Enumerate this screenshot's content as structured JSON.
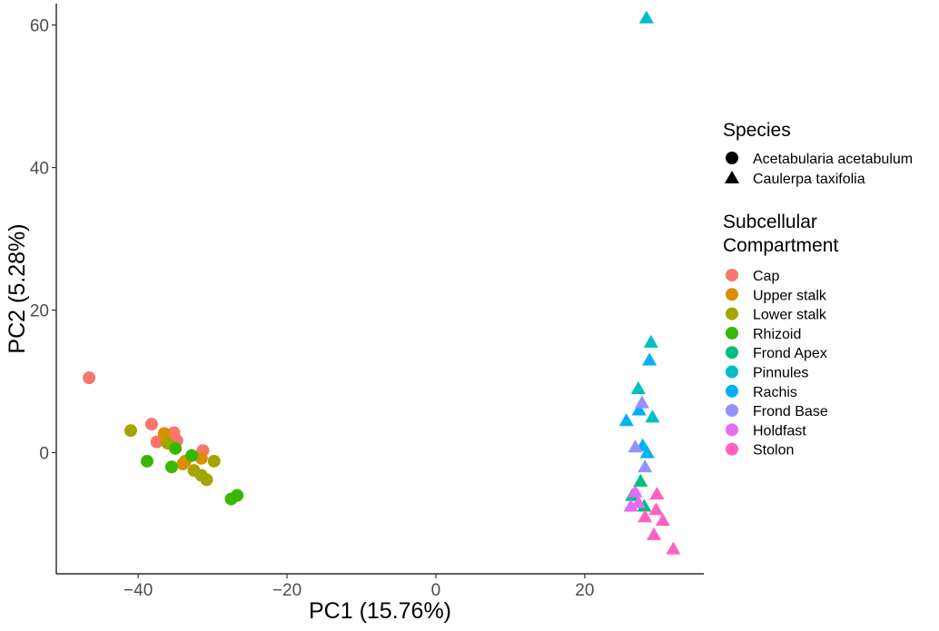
{
  "chart_data": {
    "type": "scatter",
    "xlabel": "PC1 (15.76%)",
    "ylabel": "PC2 (5.28%)",
    "xlim": [
      -51,
      36
    ],
    "ylim": [
      -17,
      63
    ],
    "xticks": [
      -40,
      -20,
      0,
      20
    ],
    "yticks": [
      0,
      20,
      40,
      60
    ],
    "xtick_labels": [
      "−40",
      "−20",
      "0",
      "20"
    ],
    "ytick_labels": [
      "0",
      "20",
      "40",
      "60"
    ],
    "grid": false,
    "legend_position": "right",
    "legend_species_title": "Species",
    "legend_compartment_title": [
      "Subcellular",
      "Compartment"
    ],
    "species": [
      {
        "name": "Acetabularia acetabulum",
        "shape": "circle"
      },
      {
        "name": "Caulerpa taxifolia",
        "shape": "triangle"
      }
    ],
    "compartments": [
      {
        "name": "Cap",
        "color": "#F8766D"
      },
      {
        "name": "Upper stalk",
        "color": "#D89000"
      },
      {
        "name": "Lower stalk",
        "color": "#A3A500"
      },
      {
        "name": "Rhizoid",
        "color": "#39B600"
      },
      {
        "name": "Frond Apex",
        "color": "#00BF7D"
      },
      {
        "name": "Pinnules",
        "color": "#00BFC4"
      },
      {
        "name": "Rachis",
        "color": "#00B0F6"
      },
      {
        "name": "Frond Base",
        "color": "#9590FF"
      },
      {
        "name": "Holdfast",
        "color": "#E76BF3"
      },
      {
        "name": "Stolon",
        "color": "#FF62BC"
      }
    ],
    "points": [
      {
        "x": -46.6,
        "y": 10.5,
        "species": "Acetabularia acetabulum",
        "compartment": "Cap"
      },
      {
        "x": -38.2,
        "y": 4.0,
        "species": "Acetabularia acetabulum",
        "compartment": "Cap"
      },
      {
        "x": -35.2,
        "y": 2.8,
        "species": "Acetabularia acetabulum",
        "compartment": "Cap"
      },
      {
        "x": -37.5,
        "y": 1.5,
        "species": "Acetabularia acetabulum",
        "compartment": "Cap"
      },
      {
        "x": -34.8,
        "y": 1.7,
        "species": "Acetabularia acetabulum",
        "compartment": "Cap"
      },
      {
        "x": -31.3,
        "y": 0.3,
        "species": "Acetabularia acetabulum",
        "compartment": "Cap"
      },
      {
        "x": -36.5,
        "y": 2.7,
        "species": "Acetabularia acetabulum",
        "compartment": "Upper stalk"
      },
      {
        "x": -36.2,
        "y": 1.5,
        "species": "Acetabularia acetabulum",
        "compartment": "Upper stalk"
      },
      {
        "x": -33.7,
        "y": -1.2,
        "species": "Acetabularia acetabulum",
        "compartment": "Upper stalk"
      },
      {
        "x": -31.5,
        "y": -0.8,
        "species": "Acetabularia acetabulum",
        "compartment": "Upper stalk"
      },
      {
        "x": -34.0,
        "y": -1.6,
        "species": "Acetabularia acetabulum",
        "compartment": "Upper stalk"
      },
      {
        "x": -41.0,
        "y": 3.1,
        "species": "Acetabularia acetabulum",
        "compartment": "Lower stalk"
      },
      {
        "x": -36.0,
        "y": 1.3,
        "species": "Acetabularia acetabulum",
        "compartment": "Lower stalk"
      },
      {
        "x": -32.5,
        "y": -2.5,
        "species": "Acetabularia acetabulum",
        "compartment": "Lower stalk"
      },
      {
        "x": -31.5,
        "y": -3.2,
        "species": "Acetabularia acetabulum",
        "compartment": "Lower stalk"
      },
      {
        "x": -30.8,
        "y": -3.8,
        "species": "Acetabularia acetabulum",
        "compartment": "Lower stalk"
      },
      {
        "x": -29.8,
        "y": -1.2,
        "species": "Acetabularia acetabulum",
        "compartment": "Lower stalk"
      },
      {
        "x": -38.8,
        "y": -1.2,
        "species": "Acetabularia acetabulum",
        "compartment": "Rhizoid"
      },
      {
        "x": -35.0,
        "y": 0.6,
        "species": "Acetabularia acetabulum",
        "compartment": "Rhizoid"
      },
      {
        "x": -35.5,
        "y": -2.0,
        "species": "Acetabularia acetabulum",
        "compartment": "Rhizoid"
      },
      {
        "x": -32.8,
        "y": -0.4,
        "species": "Acetabularia acetabulum",
        "compartment": "Rhizoid"
      },
      {
        "x": -27.5,
        "y": -6.5,
        "species": "Acetabularia acetabulum",
        "compartment": "Rhizoid"
      },
      {
        "x": -26.7,
        "y": -6.0,
        "species": "Acetabularia acetabulum",
        "compartment": "Rhizoid"
      },
      {
        "x": 28.3,
        "y": 61.0,
        "species": "Caulerpa taxifolia",
        "compartment": "Pinnules"
      },
      {
        "x": 28.9,
        "y": 15.5,
        "species": "Caulerpa taxifolia",
        "compartment": "Pinnules"
      },
      {
        "x": 27.2,
        "y": 9.0,
        "species": "Caulerpa taxifolia",
        "compartment": "Pinnules"
      },
      {
        "x": 29.1,
        "y": 5.0,
        "species": "Caulerpa taxifolia",
        "compartment": "Pinnules"
      },
      {
        "x": 28.7,
        "y": 13.0,
        "species": "Caulerpa taxifolia",
        "compartment": "Rachis"
      },
      {
        "x": 25.6,
        "y": 4.5,
        "species": "Caulerpa taxifolia",
        "compartment": "Rachis"
      },
      {
        "x": 27.3,
        "y": 6.0,
        "species": "Caulerpa taxifolia",
        "compartment": "Rachis"
      },
      {
        "x": 27.8,
        "y": 1.0,
        "species": "Caulerpa taxifolia",
        "compartment": "Rachis"
      },
      {
        "x": 28.4,
        "y": 0.0,
        "species": "Caulerpa taxifolia",
        "compartment": "Rachis"
      },
      {
        "x": 27.7,
        "y": 7.0,
        "species": "Caulerpa taxifolia",
        "compartment": "Frond Base"
      },
      {
        "x": 26.8,
        "y": 0.8,
        "species": "Caulerpa taxifolia",
        "compartment": "Frond Base"
      },
      {
        "x": 28.1,
        "y": -2.0,
        "species": "Caulerpa taxifolia",
        "compartment": "Frond Base"
      },
      {
        "x": 27.5,
        "y": -4.0,
        "species": "Caulerpa taxifolia",
        "compartment": "Frond Apex"
      },
      {
        "x": 26.4,
        "y": -6.0,
        "species": "Caulerpa taxifolia",
        "compartment": "Frond Apex"
      },
      {
        "x": 28.0,
        "y": -7.5,
        "species": "Caulerpa taxifolia",
        "compartment": "Frond Apex"
      },
      {
        "x": 26.8,
        "y": -5.5,
        "species": "Caulerpa taxifolia",
        "compartment": "Holdfast"
      },
      {
        "x": 26.2,
        "y": -7.5,
        "species": "Caulerpa taxifolia",
        "compartment": "Holdfast"
      },
      {
        "x": 27.2,
        "y": -7.0,
        "species": "Caulerpa taxifolia",
        "compartment": "Holdfast"
      },
      {
        "x": 29.7,
        "y": -5.8,
        "species": "Caulerpa taxifolia",
        "compartment": "Stolon"
      },
      {
        "x": 29.6,
        "y": -8.0,
        "species": "Caulerpa taxifolia",
        "compartment": "Stolon"
      },
      {
        "x": 28.1,
        "y": -9.0,
        "species": "Caulerpa taxifolia",
        "compartment": "Stolon"
      },
      {
        "x": 30.5,
        "y": -9.5,
        "species": "Caulerpa taxifolia",
        "compartment": "Stolon"
      },
      {
        "x": 29.3,
        "y": -11.5,
        "species": "Caulerpa taxifolia",
        "compartment": "Stolon"
      },
      {
        "x": 31.9,
        "y": -13.5,
        "species": "Caulerpa taxifolia",
        "compartment": "Stolon"
      }
    ]
  }
}
